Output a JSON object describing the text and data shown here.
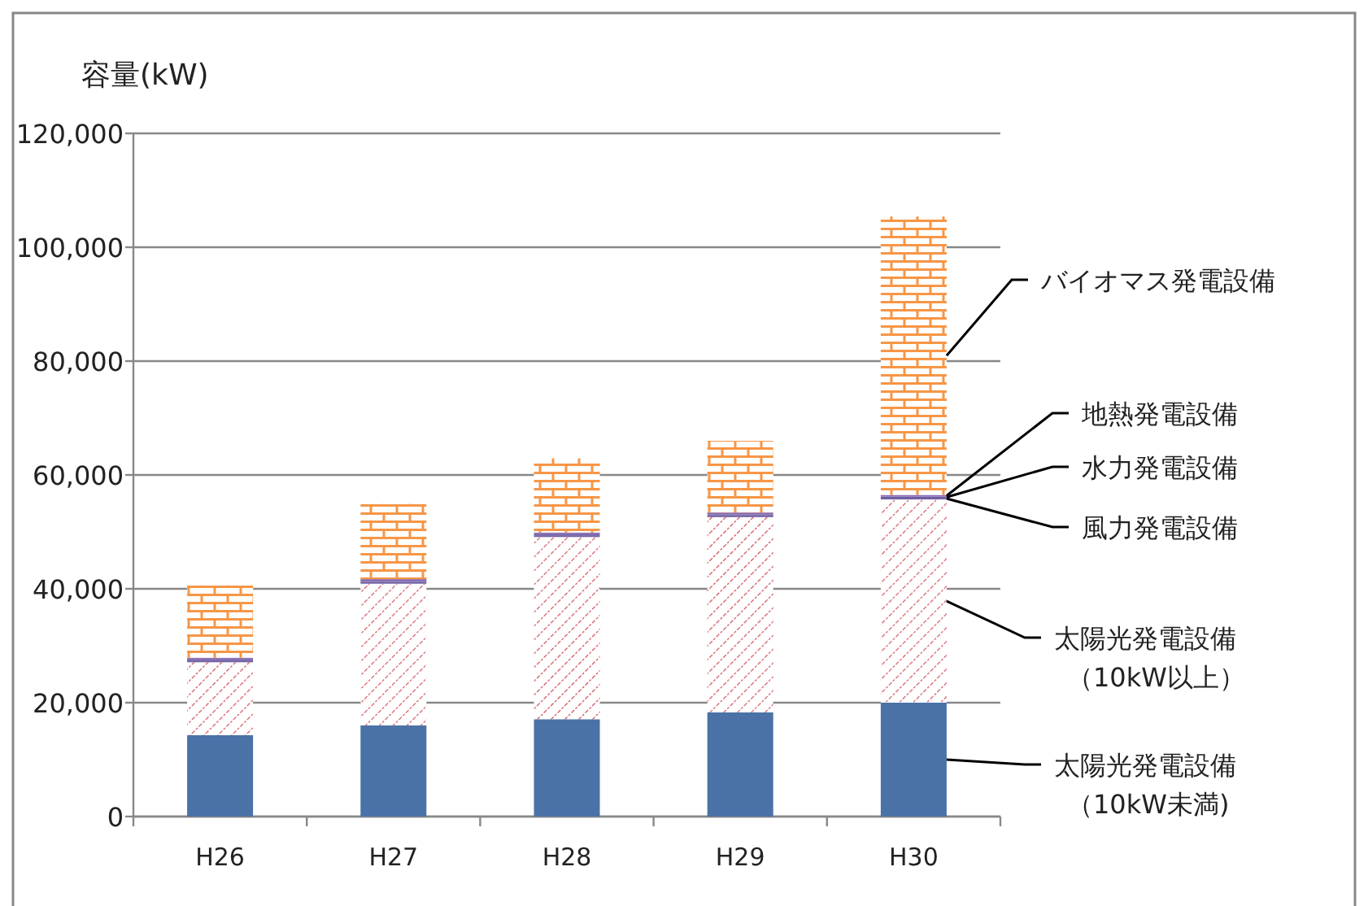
{
  "chart_data": {
    "type": "bar",
    "stacked": true,
    "ylabel": "容量(kW)",
    "categories": [
      "H26",
      "H27",
      "H28",
      "H29",
      "H30"
    ],
    "series": [
      {
        "name": "太陽光発電設備（10kW未満)",
        "color": "#4a72a6",
        "values": [
          14300,
          16000,
          17100,
          18300,
          20000
        ]
      },
      {
        "name": "太陽光発電設備（10kW以上）",
        "color": "#d0505a",
        "values": [
          12800,
          24900,
          32000,
          34300,
          35700
        ]
      },
      {
        "name": "風力発電設備",
        "color": "#7060a0",
        "values": [
          300,
          300,
          300,
          300,
          300
        ]
      },
      {
        "name": "水力発電設備",
        "color": "#6a5ca8",
        "values": [
          200,
          200,
          200,
          200,
          200
        ]
      },
      {
        "name": "地熱発電設備",
        "color": "#8a6cb0",
        "values": [
          300,
          300,
          300,
          300,
          300
        ]
      },
      {
        "name": "バイオマス発電設備",
        "color": "#f79646",
        "values": [
          12700,
          13200,
          13000,
          12600,
          48900
        ]
      }
    ],
    "ylim": [
      0,
      120000
    ],
    "yticks": [
      0,
      {
        "value": 20000,
        "label": "20,000"
      },
      {
        "value": 40000,
        "label": "40,000"
      },
      {
        "value": 60000,
        "label": "60,000"
      },
      {
        "value": 80000,
        "label": "80,000"
      },
      {
        "value": 100000,
        "label": "100,000"
      },
      {
        "value": 120000,
        "label": "120,000"
      }
    ],
    "grid": "y",
    "legend": "right"
  }
}
